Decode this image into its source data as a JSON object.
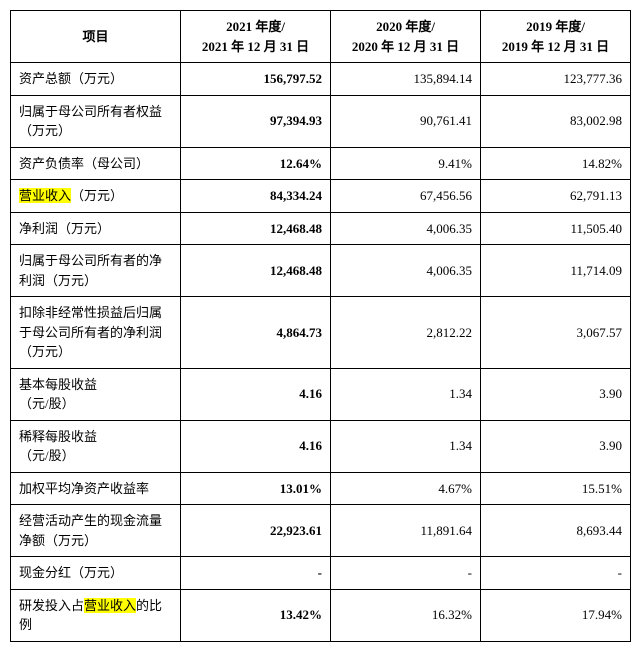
{
  "table": {
    "header": {
      "item": "项目",
      "y2021": "2021 年度/\n2021 年 12 月 31 日",
      "y2020": "2020 年度/\n2020 年 12 月 31 日",
      "y2019": "2019 年度/\n2019 年 12 月 31 日"
    },
    "rows": [
      {
        "label_pre": "资产总额（万元）",
        "label_hl": "",
        "label_post": "",
        "v2021": "156,797.52",
        "v2020": "135,894.14",
        "v2019": "123,777.36"
      },
      {
        "label_pre": "归属于母公司所有者权益（万元）",
        "label_hl": "",
        "label_post": "",
        "v2021": "97,394.93",
        "v2020": "90,761.41",
        "v2019": "83,002.98"
      },
      {
        "label_pre": "资产负债率（母公司）",
        "label_hl": "",
        "label_post": "",
        "v2021": "12.64%",
        "v2020": "9.41%",
        "v2019": "14.82%"
      },
      {
        "label_pre": "",
        "label_hl": "营业收入",
        "label_post": "（万元）",
        "v2021": "84,334.24",
        "v2020": "67,456.56",
        "v2019": "62,791.13"
      },
      {
        "label_pre": "净利润（万元）",
        "label_hl": "",
        "label_post": "",
        "v2021": "12,468.48",
        "v2020": "4,006.35",
        "v2019": "11,505.40"
      },
      {
        "label_pre": "归属于母公司所有者的净利润（万元）",
        "label_hl": "",
        "label_post": "",
        "v2021": "12,468.48",
        "v2020": "4,006.35",
        "v2019": "11,714.09"
      },
      {
        "label_pre": "扣除非经常性损益后归属于母公司所有者的净利润（万元）",
        "label_hl": "",
        "label_post": "",
        "v2021": "4,864.73",
        "v2020": "2,812.22",
        "v2019": "3,067.57"
      },
      {
        "label_pre": "基本每股收益\n（元/股）",
        "label_hl": "",
        "label_post": "",
        "v2021": "4.16",
        "v2020": "1.34",
        "v2019": "3.90"
      },
      {
        "label_pre": "稀释每股收益\n（元/股）",
        "label_hl": "",
        "label_post": "",
        "v2021": "4.16",
        "v2020": "1.34",
        "v2019": "3.90"
      },
      {
        "label_pre": "加权平均净资产收益率",
        "label_hl": "",
        "label_post": "",
        "v2021": "13.01%",
        "v2020": "4.67%",
        "v2019": "15.51%"
      },
      {
        "label_pre": "经营活动产生的现金流量净额（万元）",
        "label_hl": "",
        "label_post": "",
        "v2021": "22,923.61",
        "v2020": "11,891.64",
        "v2019": "8,693.44"
      },
      {
        "label_pre": "现金分红（万元）",
        "label_hl": "",
        "label_post": "",
        "v2021": "-",
        "v2020": "-",
        "v2019": "-"
      },
      {
        "label_pre": "研发投入占",
        "label_hl": "营业收入",
        "label_post": "的比例",
        "v2021": "13.42%",
        "v2020": "16.32%",
        "v2019": "17.94%"
      }
    ],
    "highlight_color": "#ffff00"
  }
}
